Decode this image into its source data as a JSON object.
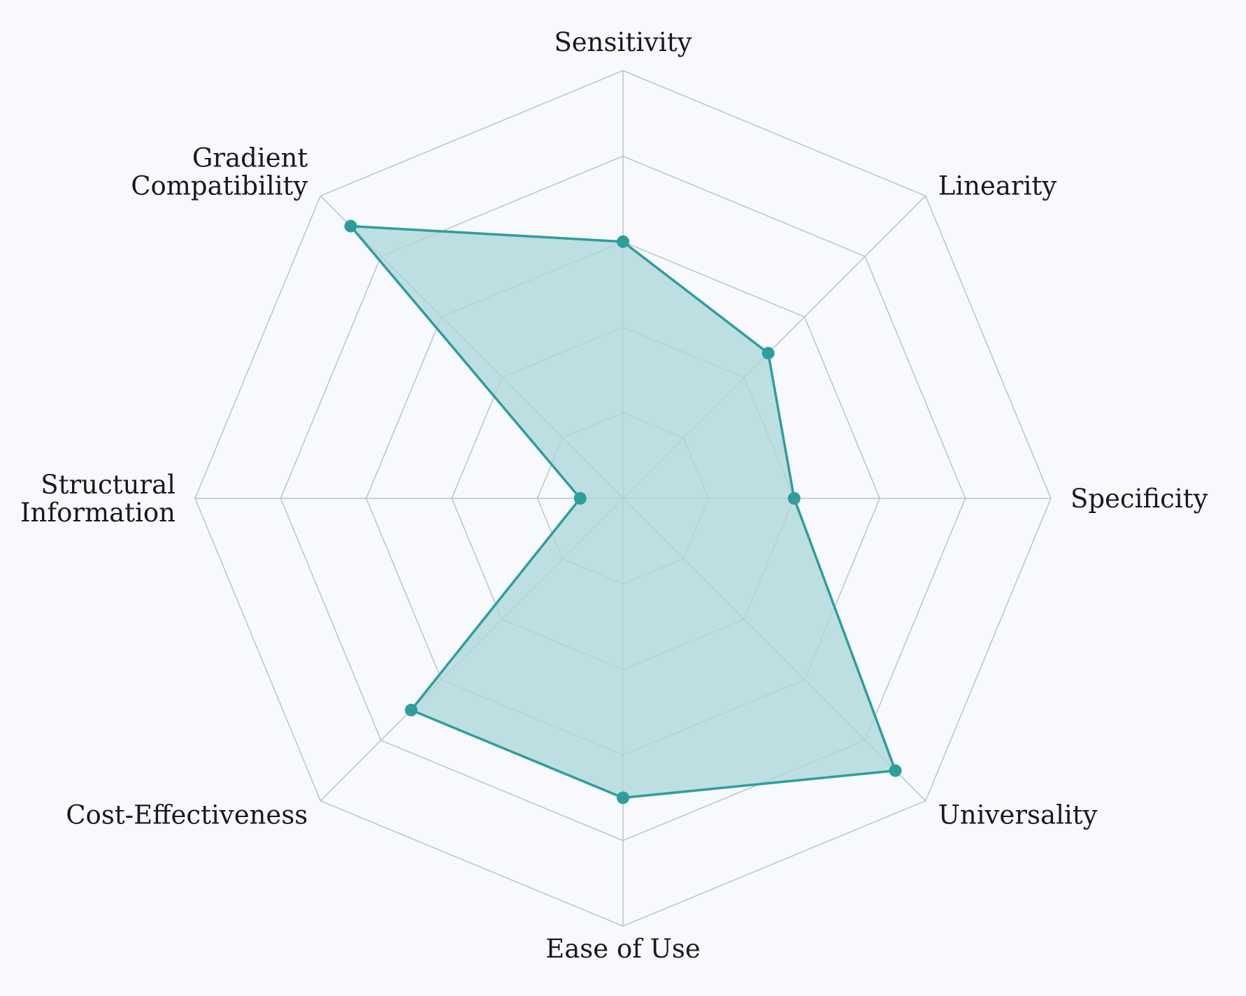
{
  "chart_data": {
    "type": "radar",
    "axes": [
      [
        "Sensitivity"
      ],
      [
        "Linearity"
      ],
      [
        "Specificity"
      ],
      [
        "Universality"
      ],
      [
        "Ease of Use"
      ],
      [
        "Cost-Effectiveness"
      ],
      [
        "Structural",
        "Information"
      ],
      [
        "Gradient",
        "Compatibility"
      ]
    ],
    "rmax": 5,
    "grid_levels": [
      1,
      2,
      3,
      4,
      5
    ],
    "grid": true,
    "series": [
      {
        "values": [
          3,
          2.4,
          2,
          4.5,
          3.5,
          3.5,
          0.5,
          4.5
        ],
        "color": "#2e9e9c",
        "fill": "#b9dde0"
      }
    ]
  },
  "colors": {
    "background": "#f7f9fd",
    "grid": "#c8c8cc",
    "text": "#1a1a1a"
  }
}
